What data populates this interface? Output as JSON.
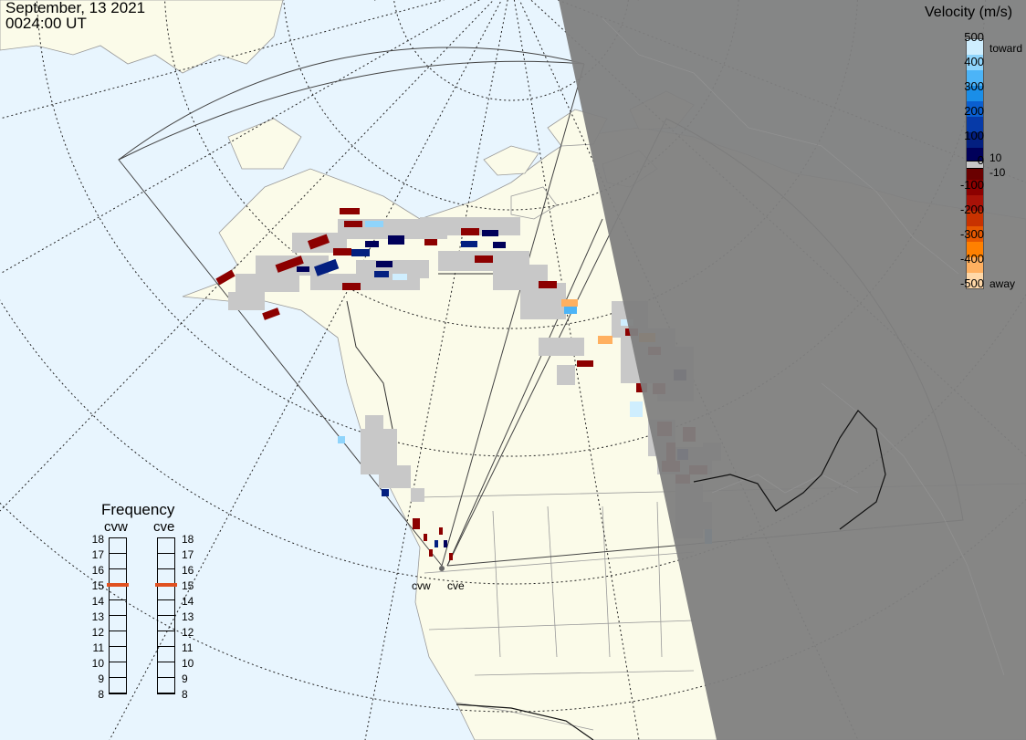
{
  "header": {
    "date": "September, 13 2021",
    "time": "0024:00 UT"
  },
  "colors": {
    "ocean": "#e8f5fe",
    "land": "#fbfbe9",
    "night": "#808080",
    "no_data": "#c8c8c8"
  },
  "colorbar": {
    "title": "Velocity (m/s)",
    "labels": [
      "500",
      "400",
      "300",
      "200",
      "100",
      "0",
      "-100",
      "-200",
      "-300",
      "-400",
      "-500"
    ],
    "inner_pos": "10",
    "inner_neg": "-10",
    "toward_label": "toward",
    "away_label": "away",
    "scale": [
      {
        "color": "#cfeefe"
      },
      {
        "color": "#8fd4fb"
      },
      {
        "color": "#4cb4f7"
      },
      {
        "color": "#1a8ee8"
      },
      {
        "color": "#0a5fd0"
      },
      {
        "color": "#063aa8"
      },
      {
        "color": "#031f80"
      },
      {
        "color": "#00005a"
      },
      {
        "color": "#6a0000"
      },
      {
        "color": "#8c0000"
      },
      {
        "color": "#a81208"
      },
      {
        "color": "#c83200"
      },
      {
        "color": "#e65800"
      },
      {
        "color": "#ff8000"
      },
      {
        "color": "#ffb060"
      },
      {
        "color": "#ffd8a8"
      }
    ]
  },
  "frequency": {
    "title": "Frequency",
    "radars": [
      "cvw",
      "cve"
    ],
    "ticks": [
      "18",
      "17",
      "16",
      "15",
      "14",
      "13",
      "12",
      "11",
      "10",
      "9",
      "8"
    ],
    "selected": {
      "cvw": 15,
      "cve": 15
    },
    "marker_color": "#e05020"
  },
  "sites": [
    "cvw",
    "cve"
  ]
}
